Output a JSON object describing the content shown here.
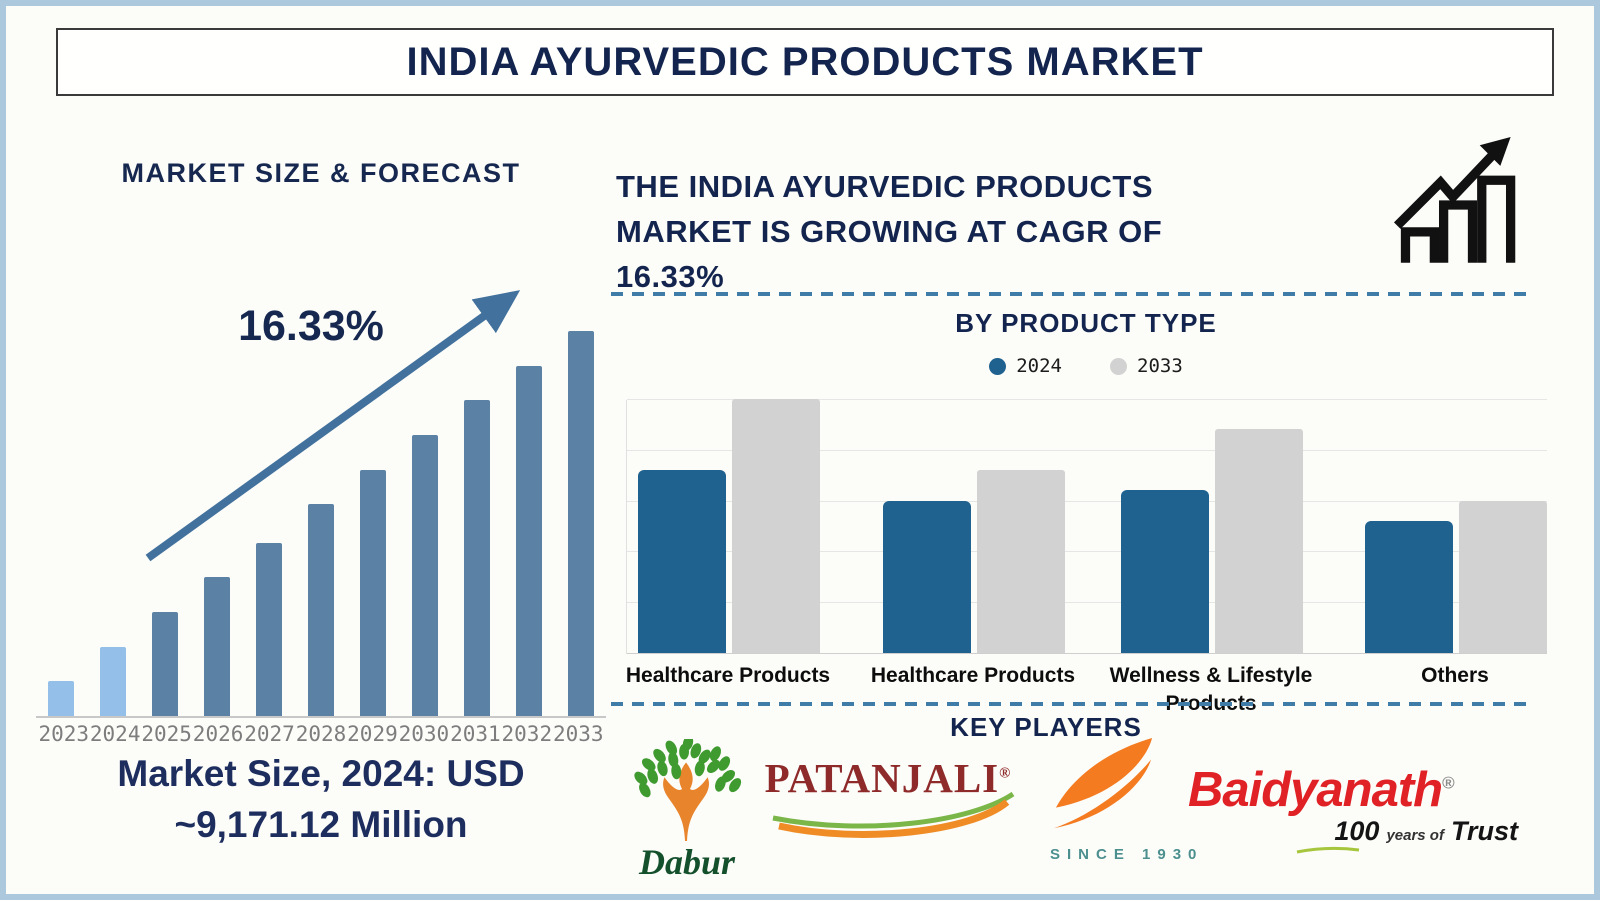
{
  "title": "INDIA AYURVEDIC PRODUCTS MARKET",
  "headline": {
    "lines": [
      "THE INDIA AYURVEDIC PRODUCTS",
      "MARKET IS GROWING AT CAGR OF",
      "16.33%"
    ]
  },
  "colors": {
    "navy": "#13254e",
    "steel_arrow": "#41719c",
    "market_bar": "#5b81a5",
    "market_bar_highlight": "#93bfe9",
    "series_2024": "#20628f",
    "series_2033": "#d2d2d2",
    "dashed_line": "#3f7ca8"
  },
  "chart_data": [
    {
      "type": "bar",
      "title": "MARKET SIZE & FORECAST",
      "categories": [
        "2023",
        "2024",
        "2025",
        "2026",
        "2027",
        "2028",
        "2029",
        "2030",
        "2031",
        "2032",
        "2033"
      ],
      "values": [
        9,
        18,
        27,
        36,
        45,
        55,
        64,
        73,
        82,
        91,
        100
      ],
      "values_unit": "relative bar height, % of tallest bar (no y-axis shown)",
      "highlighted_categories": [
        "2023",
        "2024"
      ],
      "cagr_label": "16.33%",
      "caption_lines": [
        "Market Size, 2024: USD",
        "~9,171.12 Million"
      ],
      "xlabel": "",
      "ylabel": "",
      "grid": false
    },
    {
      "type": "bar",
      "title": "BY PRODUCT TYPE",
      "categories": [
        "Healthcare Products",
        "Healthcare Products",
        "Wellness & Lifestyle Products",
        "Others"
      ],
      "series": [
        {
          "name": "2024",
          "values": [
            3.6,
            3.0,
            3.2,
            2.6
          ]
        },
        {
          "name": "2033",
          "values": [
            5.0,
            3.6,
            4.4,
            3.0
          ]
        }
      ],
      "values_unit": "gridline units (no y-axis labels shown)",
      "ylim": [
        0,
        5
      ],
      "grid": true,
      "legend_position": "top"
    }
  ],
  "key_players": {
    "title": "KEY PLAYERS",
    "dabur": {
      "name": "Dabur"
    },
    "patanjali": {
      "name": "PATANJALI",
      "reg": "®"
    },
    "himalaya": {
      "tagline": "SINCE 1930"
    },
    "baidyanath": {
      "name": "Baidyanath",
      "reg": "®",
      "tagline_100": "100",
      "tagline_mid": "years of",
      "tagline_trust": "Trust"
    }
  }
}
